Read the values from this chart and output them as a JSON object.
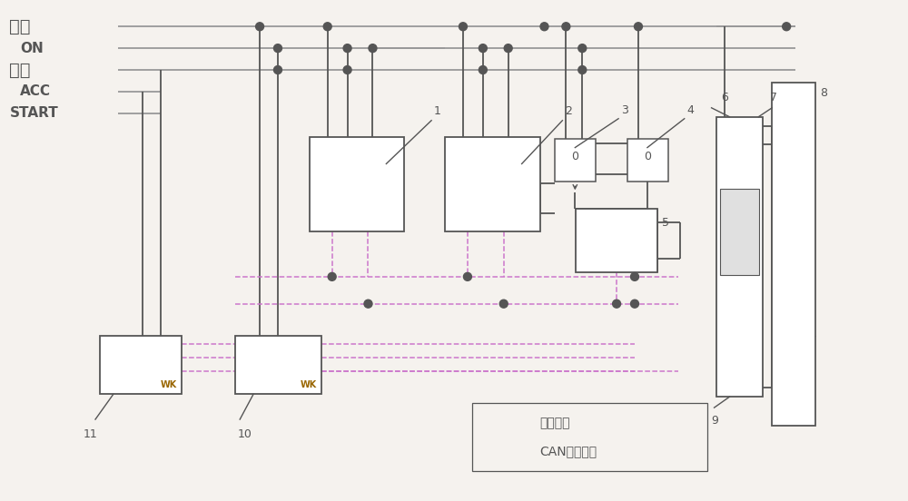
{
  "bg_color": "#f5f2ee",
  "lc": "#555555",
  "dc": "#cc77cc",
  "sc": "#bb77bb",
  "bus_lc": "#999999",
  "figsize": [
    10.0,
    5.52
  ],
  "dpi": 100,
  "labels_left": [
    "常电",
    "ON",
    "充电",
    "ACC",
    "START"
  ],
  "legend_line_label": "低压电路",
  "legend_dash_label": "CAN通讯电路"
}
